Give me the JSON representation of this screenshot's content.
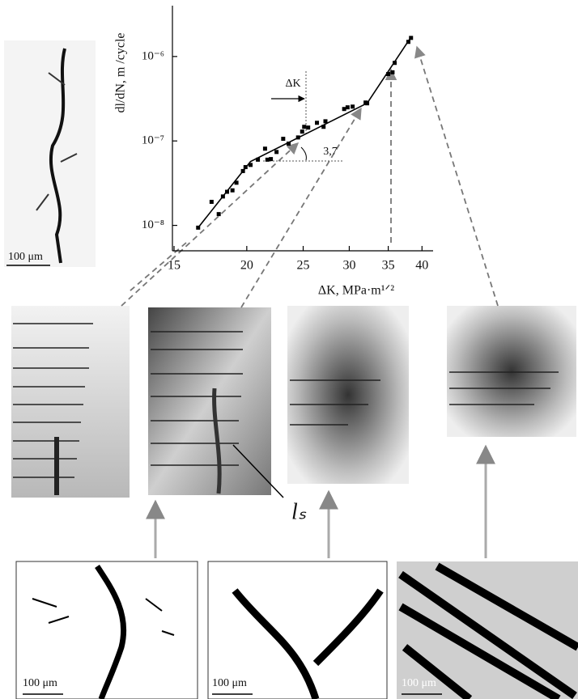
{
  "chart_data": {
    "type": "scatter",
    "y_label": "dl/dN, m /cycle",
    "x_label": "ΔK, MPa·m¹ᐟ²",
    "xscale": "log",
    "yscale": "log",
    "xlim": [
      15,
      41
    ],
    "ylim": [
      5e-09,
      4e-06
    ],
    "xticks": [
      15,
      20,
      25,
      30,
      35,
      40
    ],
    "yticks": [
      {
        "value": 1e-08,
        "label": "10⁻⁸"
      },
      {
        "value": 1e-07,
        "label": "10⁻⁷"
      },
      {
        "value": 1e-06,
        "label": "10⁻⁶"
      }
    ],
    "color": "#000000",
    "x": [
      16.5,
      17.4,
      17.9,
      18.2,
      18.5,
      18.9,
      19.2,
      19.7,
      19.9,
      20.3,
      20.9,
      21.5,
      21.7,
      22.0,
      22.5,
      23.1,
      23.6,
      24.5,
      24.9,
      25.1,
      25.5,
      26.4,
      27.1,
      27.3,
      29.4,
      29.8,
      30.4,
      32.0,
      32.2,
      35.0,
      35.6,
      35.9,
      37.9,
      38.3
    ],
    "values": [
      9.4e-09,
      1.9e-08,
      1.36e-08,
      2.2e-08,
      2.5e-08,
      2.6e-08,
      3.2e-08,
      4.4e-08,
      4.9e-08,
      5.2e-08,
      6e-08,
      8.1e-08,
      6e-08,
      6.1e-08,
      7.4e-08,
      1.06e-07,
      9.3e-08,
      1.1e-07,
      1.29e-07,
      1.47e-07,
      1.44e-07,
      1.64e-07,
      1.47e-07,
      1.71e-07,
      2.39e-07,
      2.5e-07,
      2.55e-07,
      2.85e-07,
      2.79e-07,
      6.2e-07,
      6.5e-07,
      8.4e-07,
      1.49e-06,
      1.66e-06
    ],
    "fit": {
      "x": [
        16.5,
        20.3,
        32.2,
        38.3
      ],
      "values": [
        9.4e-09,
        5.7e-08,
        2.8e-07,
        1.7e-06
      ]
    },
    "annotations": [
      "ΔK",
      "3,7"
    ]
  },
  "figure": {
    "scale_bars": [
      "100 μm",
      "100 μm",
      "100 μm",
      "100 μm"
    ],
    "label": "lₛ"
  }
}
